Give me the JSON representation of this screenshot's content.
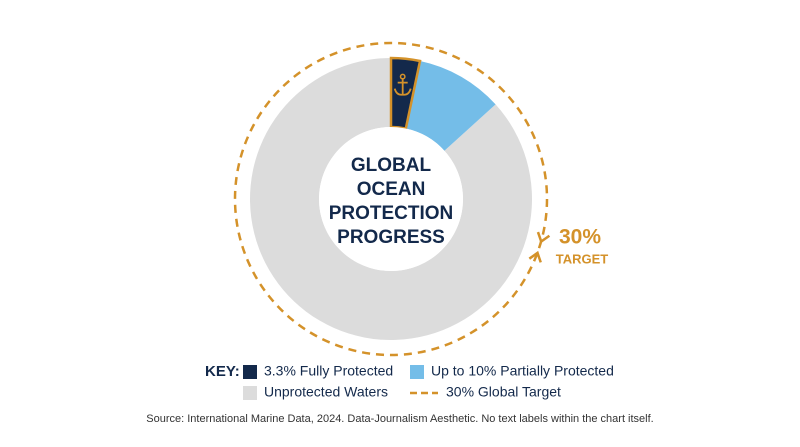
{
  "chart_data": {
    "type": "pie",
    "donut": true,
    "title": "GLOBAL OCEAN PROTECTION PROGRESS",
    "categories": [
      "3.3% Fully Protected",
      "Up to 10% Partially Protected",
      "Unprotected Waters"
    ],
    "values": [
      3.3,
      10,
      86.7
    ],
    "colors": [
      "#13294b",
      "#74bde8",
      "#dcdcdc"
    ],
    "target": {
      "value": 30,
      "label": "30%",
      "sublabel": "TARGET",
      "name": "30% Global Target",
      "color": "#d4922a"
    },
    "legend_title": "KEY:",
    "source": "Source: International Marine Data, 2024. Data-Journalism Aesthetic. No text labels within the chart itself."
  }
}
